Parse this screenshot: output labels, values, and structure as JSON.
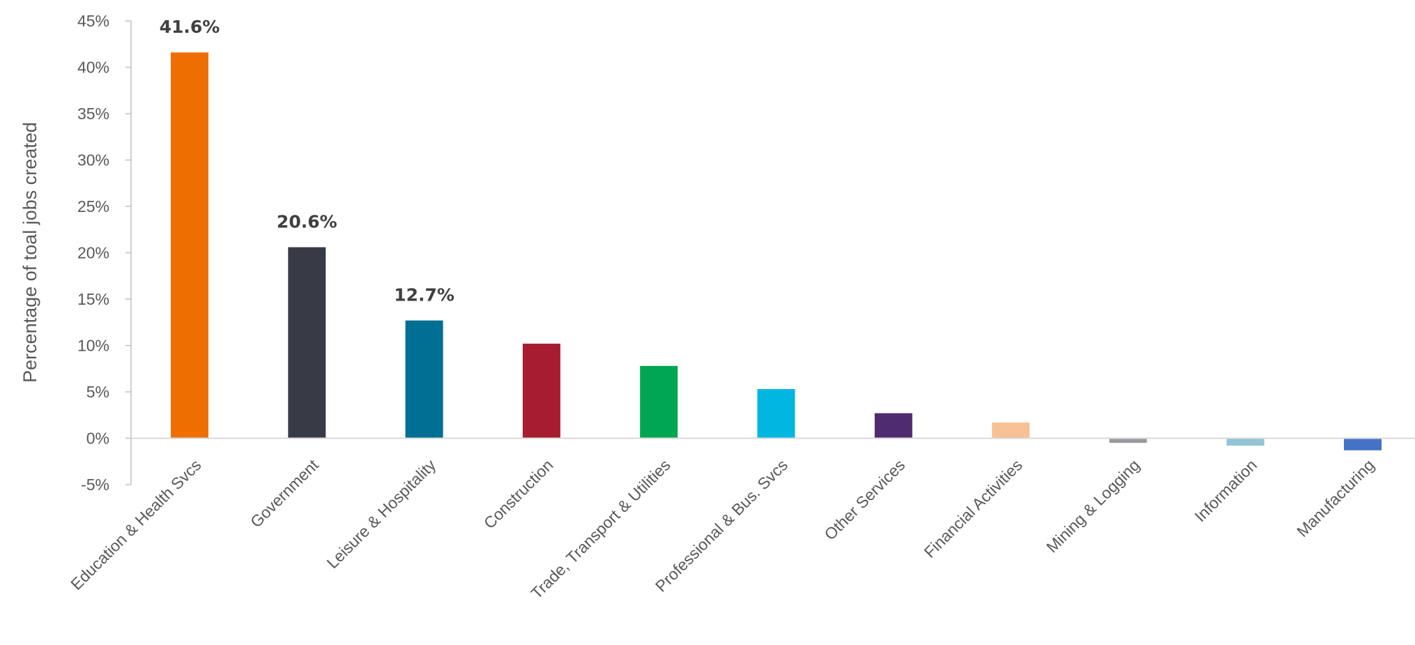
{
  "chart_data": {
    "type": "bar",
    "title": "",
    "xlabel": "",
    "ylabel": "Percentage of toal jobs created",
    "ylim": [
      -5,
      45
    ],
    "yticks": [
      "-5%",
      "0%",
      "5%",
      "10%",
      "15%",
      "20%",
      "25%",
      "30%",
      "35%",
      "40%",
      "45%"
    ],
    "grid": false,
    "categories": [
      "Education & Health Svcs",
      "Government",
      "Leisure & Hospitality",
      "Construction",
      "Trade, Transport & Utilities",
      "Professional & Bus. Svcs",
      "Other Services",
      "Financial Activities",
      "Mining & Logging",
      "Information",
      "Manufacturing"
    ],
    "values": [
      41.6,
      20.6,
      12.7,
      10.2,
      7.8,
      5.3,
      2.7,
      1.7,
      -0.5,
      -0.8,
      -1.3
    ],
    "colors": [
      "#EE6F00",
      "#383B45",
      "#006F94",
      "#A61D30",
      "#00A651",
      "#00B7E2",
      "#4F2B6F",
      "#F8C195",
      "#9A9A9F",
      "#93C5D5",
      "#4472C4"
    ],
    "data_labels": [
      "41.6%",
      "20.6%",
      "12.7%",
      "",
      "",
      "",
      "",
      "",
      "",
      "",
      ""
    ]
  }
}
